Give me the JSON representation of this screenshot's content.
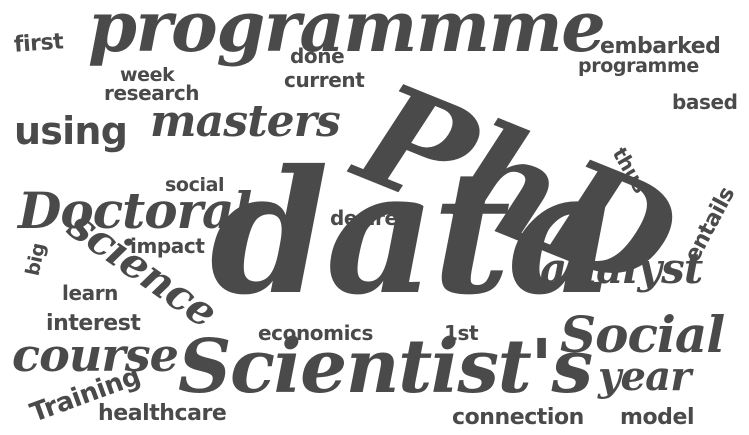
{
  "words": {
    "programmme": "programmme",
    "first": "first",
    "embarked": "embarked",
    "done": "done",
    "week": "week",
    "programme": "programme",
    "current": "current",
    "research": "research",
    "based": "based",
    "using": "using",
    "masters": "masters",
    "phd": "PhD",
    "thus": "thus",
    "doctoral": "Doctoral",
    "social_small": "social",
    "desire": "desire",
    "entails": "entails",
    "science": "science",
    "impact": "impact",
    "data": "data",
    "big": "big",
    "analyst": "analyst",
    "learn": "learn",
    "interest": "interest",
    "economics": "economics",
    "first_1st": "1st",
    "social_big": "Social",
    "course": "course",
    "scientists": "Scientist's",
    "year": "year",
    "training": "Training",
    "healthcare": "healthcare",
    "connection": "connection",
    "model": "model"
  },
  "colors": {
    "text": "#4a4a4a",
    "background": "#ffffff"
  }
}
